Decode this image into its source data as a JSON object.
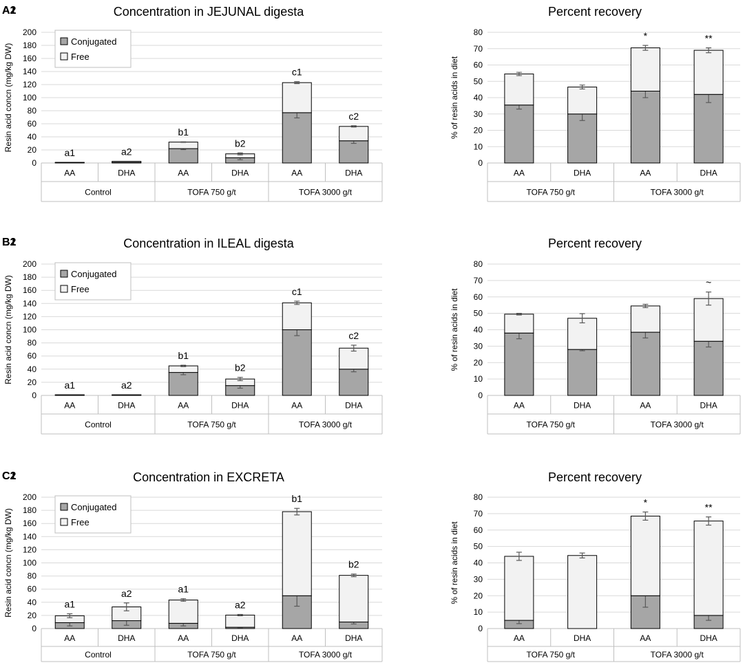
{
  "chart_data": [
    {
      "id": "A1",
      "type": "bar",
      "stacked": true,
      "title": "Concentration in JEJUNAL digesta",
      "ylabel": "Resin acid concn (mg/kg DW)",
      "xlabel": "",
      "ylim": [
        0,
        200
      ],
      "yticks": [
        0,
        20,
        40,
        60,
        80,
        100,
        120,
        140,
        160,
        180,
        200
      ],
      "grid": true,
      "legend": "top-left",
      "categories": [
        "AA",
        "DHA",
        "AA",
        "DHA",
        "AA",
        "DHA"
      ],
      "groups": [
        "Control",
        "TOFA 750 g/t",
        "TOFA 3000 g/t"
      ],
      "series": [
        {
          "name": "Conjugated",
          "color": "#a6a6a6",
          "values": [
            0.5,
            1,
            22,
            8,
            77,
            34
          ],
          "errors": [
            0,
            0,
            1.5,
            3,
            8,
            4
          ]
        },
        {
          "name": "Free",
          "color": "#f2f2f2",
          "values": [
            0.5,
            1.5,
            10,
            6,
            46,
            22
          ],
          "errors": [
            0,
            0,
            0.5,
            1.5,
            1.5,
            1
          ]
        }
      ],
      "annotations": [
        "a1",
        "a2",
        "b1",
        "b2",
        "c1",
        "c2"
      ]
    },
    {
      "id": "A2",
      "type": "bar",
      "stacked": true,
      "title": "Percent recovery",
      "ylabel": "% of resin acids in diet",
      "xlabel": "",
      "ylim": [
        0,
        80
      ],
      "yticks": [
        0,
        10,
        20,
        30,
        40,
        50,
        60,
        70,
        80
      ],
      "grid": true,
      "legend": "none",
      "categories": [
        "AA",
        "DHA",
        "AA",
        "DHA"
      ],
      "groups": [
        "TOFA 750 g/t",
        "TOFA 3000 g/t"
      ],
      "series": [
        {
          "name": "Conjugated",
          "color": "#a6a6a6",
          "values": [
            35.5,
            30,
            44,
            42
          ],
          "errors": [
            2.5,
            4,
            4,
            5
          ]
        },
        {
          "name": "Free",
          "color": "#f2f2f2",
          "values": [
            19,
            16.5,
            26.5,
            27
          ],
          "errors": [
            1,
            1.2,
            1.5,
            1.5
          ]
        }
      ],
      "annotations": [
        "",
        "",
        "*",
        "**"
      ]
    },
    {
      "id": "B1",
      "type": "bar",
      "stacked": true,
      "title": "Concentration in ILEAL digesta",
      "ylabel": "Resin acid concn (mg/kg DW)",
      "xlabel": "",
      "ylim": [
        0,
        200
      ],
      "yticks": [
        0,
        20,
        40,
        60,
        80,
        100,
        120,
        140,
        160,
        180,
        200
      ],
      "grid": true,
      "legend": "top-left",
      "categories": [
        "AA",
        "DHA",
        "AA",
        "DHA",
        "AA",
        "DHA"
      ],
      "groups": [
        "Control",
        "TOFA 750 g/t",
        "TOFA 3000 g/t"
      ],
      "series": [
        {
          "name": "Conjugated",
          "color": "#a6a6a6",
          "values": [
            0.5,
            0.5,
            35,
            15,
            100,
            40
          ],
          "errors": [
            0,
            0,
            3.5,
            4,
            9,
            4
          ]
        },
        {
          "name": "Free",
          "color": "#f2f2f2",
          "values": [
            0.5,
            0.5,
            10,
            10,
            41,
            32
          ],
          "errors": [
            0,
            0,
            1,
            2.5,
            2.5,
            4.5
          ]
        }
      ],
      "annotations": [
        "a1",
        "a2",
        "b1",
        "b2",
        "c1",
        "c2"
      ]
    },
    {
      "id": "B2",
      "type": "bar",
      "stacked": true,
      "title": "Percent recovery",
      "ylabel": "% of resin acids in diet",
      "xlabel": "",
      "ylim": [
        0,
        80
      ],
      "yticks": [
        0,
        10,
        20,
        30,
        40,
        50,
        60,
        70,
        80
      ],
      "grid": true,
      "legend": "none",
      "categories": [
        "AA",
        "DHA",
        "AA",
        "DHA"
      ],
      "groups": [
        "TOFA 750 g/t",
        "TOFA 3000 g/t"
      ],
      "series": [
        {
          "name": "Conjugated",
          "color": "#a6a6a6",
          "values": [
            38,
            28,
            38.5,
            33
          ],
          "errors": [
            3.5,
            0.8,
            3.5,
            3.5
          ]
        },
        {
          "name": "Free",
          "color": "#f2f2f2",
          "values": [
            11.5,
            19,
            16,
            26
          ],
          "errors": [
            0.5,
            2.8,
            1,
            4
          ]
        }
      ],
      "annotations": [
        "",
        "",
        "",
        "~"
      ]
    },
    {
      "id": "C1",
      "type": "bar",
      "stacked": true,
      "title": "Concentration in EXCRETA",
      "ylabel": "Resin acid concn (mg/kg DW)",
      "xlabel": "",
      "ylim": [
        0,
        200
      ],
      "yticks": [
        0,
        20,
        40,
        60,
        80,
        100,
        120,
        140,
        160,
        180,
        200
      ],
      "grid": true,
      "legend": "top-left",
      "categories": [
        "AA",
        "DHA",
        "AA",
        "DHA",
        "AA",
        "DHA"
      ],
      "groups": [
        "Control",
        "TOFA 750 g/t",
        "TOFA 3000 g/t"
      ],
      "series": [
        {
          "name": "Conjugated",
          "color": "#a6a6a6",
          "values": [
            9,
            12,
            8,
            2,
            50,
            10
          ],
          "errors": [
            5,
            7,
            4,
            1,
            16,
            3
          ]
        },
        {
          "name": "Free",
          "color": "#f2f2f2",
          "values": [
            10.5,
            21,
            35.5,
            18.5,
            128,
            71
          ],
          "errors": [
            3,
            6,
            2,
            1,
            5,
            2
          ]
        }
      ],
      "annotations": [
        "a1",
        "a2",
        "a1",
        "a2",
        "b1",
        "b2"
      ]
    },
    {
      "id": "C2",
      "type": "bar",
      "stacked": true,
      "title": "Percent recovery",
      "ylabel": "% of resin acids in diet",
      "xlabel": "",
      "ylim": [
        0,
        80
      ],
      "yticks": [
        0,
        10,
        20,
        30,
        40,
        50,
        60,
        70,
        80
      ],
      "grid": true,
      "legend": "none",
      "categories": [
        "AA",
        "DHA",
        "AA",
        "DHA"
      ],
      "groups": [
        "TOFA 750 g/t",
        "TOFA 3000 g/t"
      ],
      "series": [
        {
          "name": "Conjugated",
          "color": "#a6a6a6",
          "values": [
            5,
            0,
            20,
            8
          ],
          "errors": [
            2,
            0,
            7,
            3
          ]
        },
        {
          "name": "Free",
          "color": "#f2f2f2",
          "values": [
            39,
            44.5,
            48.5,
            57.5
          ],
          "errors": [
            2.5,
            1.5,
            2.5,
            2.5
          ]
        }
      ],
      "annotations": [
        "",
        "",
        "*",
        "**"
      ]
    }
  ]
}
